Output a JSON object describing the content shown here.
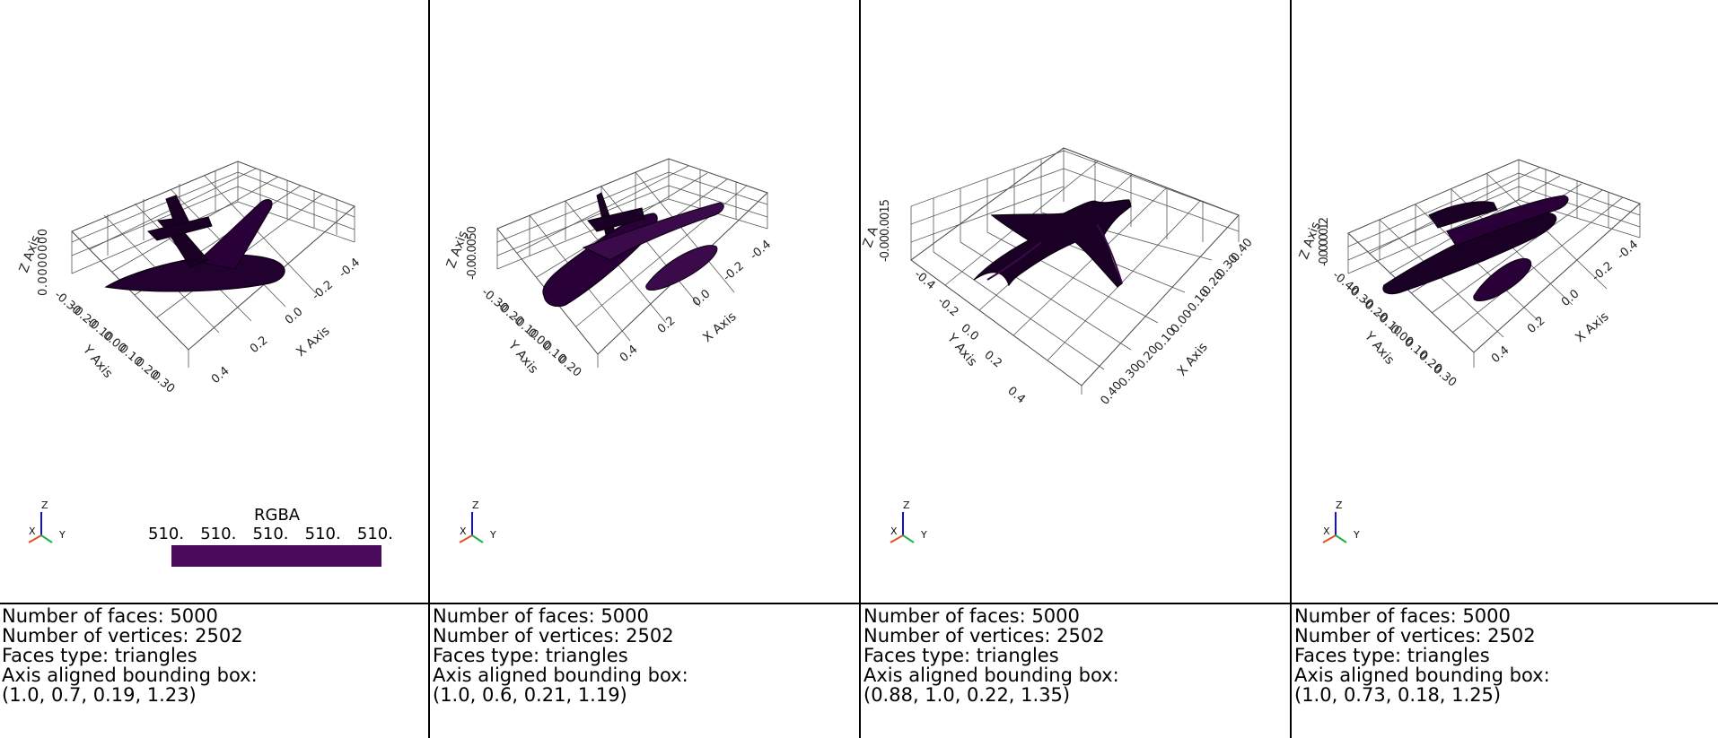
{
  "colors": {
    "mesh": "#440154",
    "mesh_edge": "#1a001f",
    "colorbar": "#4a0a5c"
  },
  "panels": [
    {
      "axes": {
        "z_label": "Z Axis",
        "y_label": "Y Axis",
        "x_label": "X Axis",
        "z_ticks": "0.0000000",
        "y_ticks": [
          "-0.30",
          "-0.20",
          "-0.10",
          "0.00",
          "0.10",
          "0.20",
          "0.30"
        ],
        "x_ticks": [
          "0.4",
          "0.2",
          "0.0",
          "-0.2",
          "-0.4"
        ]
      },
      "colorbar": {
        "title": "RGBA",
        "ticks": [
          "510.",
          "510.",
          "510.",
          "510.",
          "510."
        ]
      },
      "info": {
        "faces": "Number of faces: 5000",
        "vertices": "Number of vertices: 2502",
        "type": "Faces type: triangles",
        "bbox_label": "Axis aligned bounding box:",
        "bbox": "(1.0, 0.7, 0.19, 1.23)"
      }
    },
    {
      "axes": {
        "z_label": "Z Axis",
        "y_label": "Y Axis",
        "x_label": "X Axis",
        "z_ticks": "-0.00.0050",
        "y_ticks": [
          "-0.30",
          "-0.20",
          "-0.10",
          "0.00",
          "0.10",
          "0.20"
        ],
        "x_ticks": [
          "0.4",
          "0.2",
          "0.0",
          "-0.2",
          "-0.4"
        ]
      },
      "info": {
        "faces": "Number of faces: 5000",
        "vertices": "Number of vertices: 2502",
        "type": "Faces type: triangles",
        "bbox_label": "Axis aligned bounding box:",
        "bbox": "(1.0, 0.6, 0.21, 1.19)"
      }
    },
    {
      "axes": {
        "z_label": "Z A",
        "y_label": "Y Axis",
        "x_label": "X Axis",
        "z_ticks": "-0.000.0015",
        "y_ticks": [
          "-0.4",
          "-0.2",
          "0.0",
          "0.2",
          "0.4"
        ],
        "x_ticks": [
          "0.40",
          "0.30",
          "0.20",
          "0.10",
          "0.00",
          "-0.10",
          "-0.20",
          "-0.30",
          "-0.40"
        ]
      },
      "info": {
        "faces": "Number of faces: 5000",
        "vertices": "Number of vertices: 2502",
        "type": "Faces type: triangles",
        "bbox_label": "Axis aligned bounding box:",
        "bbox": "(0.88, 1.0, 0.22, 1.35)"
      }
    },
    {
      "axes": {
        "z_label": "Z Axis",
        "y_label": "Y Axis",
        "x_label": "X Axis",
        "z_ticks": "-0.0000012",
        "y_ticks": [
          "-0.40",
          "-0.30",
          "-0.20",
          "-0.10",
          "0.00",
          "0.10",
          "0.20",
          "0.30"
        ],
        "x_ticks": [
          "0.4",
          "0.2",
          "0.0",
          "-0.2",
          "-0.4"
        ]
      },
      "info": {
        "faces": "Number of faces: 5000",
        "vertices": "Number of vertices: 2502",
        "type": "Faces type: triangles",
        "bbox_label": "Axis aligned bounding box:",
        "bbox": "(1.0, 0.73, 0.18, 1.25)"
      }
    }
  ],
  "triad": {
    "x": "X",
    "y": "Y",
    "z": "Z"
  }
}
